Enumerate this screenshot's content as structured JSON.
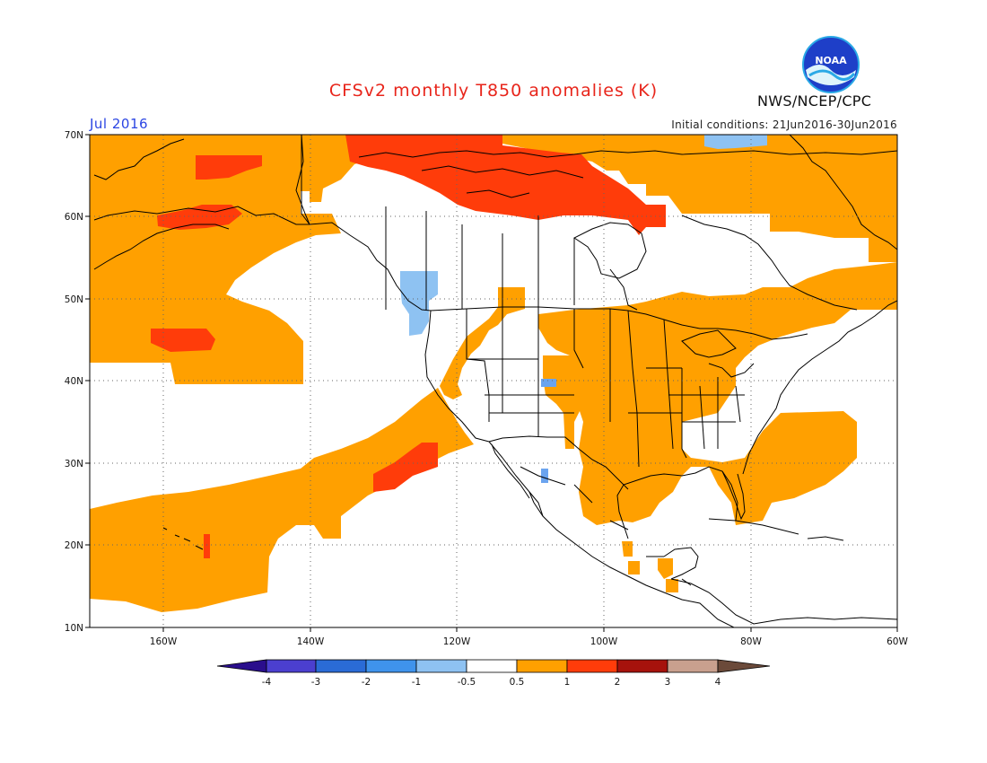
{
  "header": {
    "title": "CFSv2 monthly T850 anomalies (K)",
    "agency": "NWS/NCEP/CPC",
    "month": "Jul 2016",
    "initial_conditions": "Initial conditions: 21Jun2016-30Jun2016",
    "logo_text": "NOAA"
  },
  "axes": {
    "lat_labels": [
      "70N",
      "60N",
      "50N",
      "40N",
      "30N",
      "20N",
      "10N"
    ],
    "lon_labels": [
      "160W",
      "140W",
      "120W",
      "100W",
      "80W",
      "60W"
    ]
  },
  "colorbar": {
    "labels": [
      "-4",
      "-3",
      "-2",
      "-1",
      "-0.5",
      "0.5",
      "1",
      "2",
      "3",
      "4"
    ],
    "colors": [
      "#2a0e8c",
      "#4b3fcf",
      "#2a6bd6",
      "#3f93ec",
      "#8ec2f2",
      "#ffffff",
      "#ffa000",
      "#ff3c0a",
      "#a6120c",
      "#c9a08e",
      "#6b4a3a"
    ]
  },
  "colors": {
    "anomaly_05_1": "#ffa000",
    "anomaly_1_2": "#ff3c0a",
    "anomaly_neg_05_1": "#8ec2f2",
    "anomaly_neg_1_2": "#6ba4ef",
    "map_lines": "#000000"
  }
}
